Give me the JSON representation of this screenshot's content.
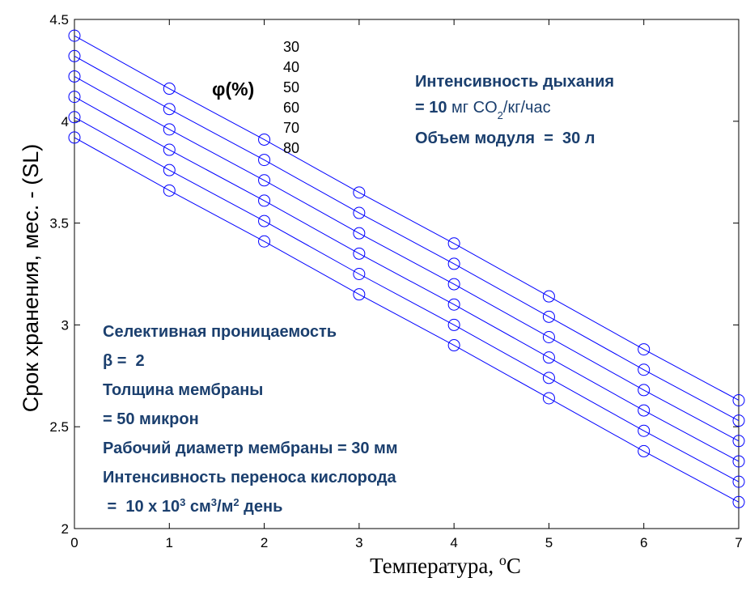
{
  "chart_data": {
    "type": "line",
    "xlabel": [
      {
        "text": "Температура, ",
        "style": "normal"
      },
      {
        "text": "o",
        "style": "sup"
      },
      {
        "text": "C",
        "style": "normal"
      }
    ],
    "ylabel": "Срок хранения, мес. - (SL)",
    "legend_title": "φ(%)",
    "x": [
      0,
      1,
      2,
      3,
      4,
      5,
      6,
      7
    ],
    "xlim": [
      0,
      7
    ],
    "xticks": [
      0,
      1,
      2,
      3,
      4,
      5,
      6,
      7
    ],
    "ylim": [
      2,
      4.5
    ],
    "yticks": [
      2,
      2.5,
      3,
      3.5,
      4,
      4.5
    ],
    "grid": false,
    "series": [
      {
        "name": "30",
        "color": "#0000ff",
        "values": [
          4.42,
          4.16,
          3.91,
          3.65,
          3.4,
          3.14,
          2.88,
          2.63
        ]
      },
      {
        "name": "40",
        "color": "#0000ff",
        "values": [
          4.32,
          4.06,
          3.81,
          3.55,
          3.3,
          3.04,
          2.78,
          2.53
        ]
      },
      {
        "name": "50",
        "color": "#0000ff",
        "values": [
          4.22,
          3.96,
          3.71,
          3.45,
          3.2,
          2.94,
          2.68,
          2.43
        ]
      },
      {
        "name": "60",
        "color": "#0000ff",
        "values": [
          4.12,
          3.86,
          3.61,
          3.35,
          3.1,
          2.84,
          2.58,
          2.33
        ]
      },
      {
        "name": "70",
        "color": "#0000ff",
        "values": [
          4.02,
          3.76,
          3.51,
          3.25,
          3.0,
          2.74,
          2.48,
          2.23
        ]
      },
      {
        "name": "80",
        "color": "#0000ff",
        "values": [
          3.92,
          3.66,
          3.41,
          3.15,
          2.9,
          2.64,
          2.38,
          2.13
        ]
      }
    ],
    "annotations": [
      {
        "lines": [
          [
            {
              "text": "Интенсивность дыхания",
              "style": "bold"
            }
          ],
          [
            {
              "text": "= 10",
              "style": "bold"
            },
            {
              "text": " мг CO",
              "style": "normal"
            },
            {
              "text": "2",
              "style": "sub"
            },
            {
              "text": "/кг/час",
              "style": "normal"
            }
          ],
          [
            {
              "text": "Объем модуля  =  30 л",
              "style": "bold"
            }
          ]
        ]
      },
      {
        "lines": [
          [
            {
              "text": "Селективная проницаемость",
              "style": "bold"
            }
          ],
          [
            {
              "text": "β =  2",
              "style": "bold"
            }
          ],
          [
            {
              "text": "Толщина мембраны",
              "style": "bold"
            }
          ],
          [
            {
              "text": "= 50 микрон",
              "style": "bold"
            }
          ],
          [
            {
              "text": "Рабочий диаметр мембраны = 30 мм",
              "style": "bold"
            }
          ],
          [
            {
              "text": "Интенсивность переноса кислорода",
              "style": "bold"
            }
          ],
          [
            {
              "text": " =  10 x 10",
              "style": "bold"
            },
            {
              "text": "3",
              "style": "boldsup"
            },
            {
              "text": " см",
              "style": "bold"
            },
            {
              "text": "3",
              "style": "boldsup"
            },
            {
              "text": "/м",
              "style": "bold"
            },
            {
              "text": "2",
              "style": "boldsup"
            },
            {
              "text": " день",
              "style": "bold"
            }
          ]
        ]
      }
    ]
  }
}
